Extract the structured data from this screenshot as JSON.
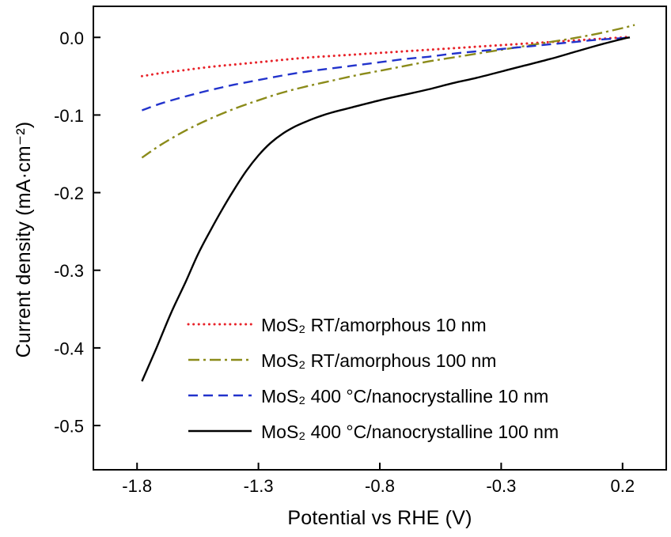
{
  "figure": {
    "background": "#ffffff"
  },
  "chart_data": {
    "type": "line",
    "title": "",
    "xlabel": "Potential vs  RHE (V)",
    "ylabel": "Current density (mA·cm⁻²)",
    "xlim": [
      -1.98,
      0.38
    ],
    "ylim": [
      -0.557,
      0.04
    ],
    "xticks": [
      -1.8,
      -1.3,
      -0.8,
      -0.3,
      0.2
    ],
    "yticks": [
      0.0,
      -0.1,
      -0.2,
      -0.3,
      -0.4,
      -0.5
    ],
    "grid": false,
    "legend_position": "inside-bottom-center",
    "axis_color": "#000000",
    "series": [
      {
        "name": "mos2-rt-amorphous-10nm",
        "label": "MoS₂ RT/amorphous 10 nm",
        "color": "#e8232a",
        "style": "dotted",
        "points": [
          [
            -1.78,
            -0.05
          ],
          [
            -1.7,
            -0.046
          ],
          [
            -1.6,
            -0.042
          ],
          [
            -1.5,
            -0.038
          ],
          [
            -1.4,
            -0.035
          ],
          [
            -1.3,
            -0.032
          ],
          [
            -1.2,
            -0.029
          ],
          [
            -1.1,
            -0.026
          ],
          [
            -1.0,
            -0.024
          ],
          [
            -0.9,
            -0.022
          ],
          [
            -0.8,
            -0.02
          ],
          [
            -0.7,
            -0.018
          ],
          [
            -0.6,
            -0.016
          ],
          [
            -0.5,
            -0.014
          ],
          [
            -0.4,
            -0.012
          ],
          [
            -0.3,
            -0.01
          ],
          [
            -0.2,
            -0.008
          ],
          [
            -0.1,
            -0.006
          ],
          [
            0.0,
            -0.004
          ],
          [
            0.1,
            -0.002
          ],
          [
            0.2,
            0.0
          ],
          [
            0.23,
            0.001
          ]
        ]
      },
      {
        "name": "mos2-rt-amorphous-100nm",
        "label": "MoS₂ RT/amorphous 100 nm",
        "color": "#8b8b1a",
        "style": "dashdot",
        "points": [
          [
            -1.78,
            -0.155
          ],
          [
            -1.7,
            -0.138
          ],
          [
            -1.6,
            -0.12
          ],
          [
            -1.5,
            -0.105
          ],
          [
            -1.4,
            -0.092
          ],
          [
            -1.3,
            -0.081
          ],
          [
            -1.2,
            -0.071
          ],
          [
            -1.1,
            -0.063
          ],
          [
            -1.0,
            -0.056
          ],
          [
            -0.9,
            -0.049
          ],
          [
            -0.8,
            -0.043
          ],
          [
            -0.7,
            -0.037
          ],
          [
            -0.6,
            -0.031
          ],
          [
            -0.5,
            -0.026
          ],
          [
            -0.4,
            -0.021
          ],
          [
            -0.3,
            -0.016
          ],
          [
            -0.2,
            -0.011
          ],
          [
            -0.1,
            -0.006
          ],
          [
            0.0,
            -0.001
          ],
          [
            0.1,
            0.005
          ],
          [
            0.2,
            0.012
          ],
          [
            0.25,
            0.016
          ]
        ]
      },
      {
        "name": "mos2-400c-nanocrystalline-10nm",
        "label": "MoS₂ 400 °C/nanocrystalline 10 nm",
        "color": "#2233cc",
        "style": "dashed",
        "points": [
          [
            -1.78,
            -0.094
          ],
          [
            -1.7,
            -0.085
          ],
          [
            -1.6,
            -0.076
          ],
          [
            -1.5,
            -0.068
          ],
          [
            -1.4,
            -0.061
          ],
          [
            -1.3,
            -0.055
          ],
          [
            -1.2,
            -0.049
          ],
          [
            -1.1,
            -0.044
          ],
          [
            -1.0,
            -0.04
          ],
          [
            -0.9,
            -0.036
          ],
          [
            -0.8,
            -0.032
          ],
          [
            -0.7,
            -0.028
          ],
          [
            -0.6,
            -0.025
          ],
          [
            -0.5,
            -0.021
          ],
          [
            -0.4,
            -0.018
          ],
          [
            -0.3,
            -0.015
          ],
          [
            -0.2,
            -0.012
          ],
          [
            -0.1,
            -0.009
          ],
          [
            0.0,
            -0.006
          ],
          [
            0.1,
            -0.003
          ],
          [
            0.2,
            -0.001
          ],
          [
            0.23,
            0.0
          ]
        ]
      },
      {
        "name": "mos2-400c-nanocrystalline-100nm",
        "label": "MoS₂ 400 °C/nanocrystalline 100 nm",
        "color": "#000000",
        "style": "solid",
        "points": [
          [
            -1.78,
            -0.443
          ],
          [
            -1.72,
            -0.4
          ],
          [
            -1.66,
            -0.355
          ],
          [
            -1.6,
            -0.315
          ],
          [
            -1.55,
            -0.28
          ],
          [
            -1.5,
            -0.25
          ],
          [
            -1.45,
            -0.222
          ],
          [
            -1.4,
            -0.196
          ],
          [
            -1.35,
            -0.172
          ],
          [
            -1.3,
            -0.152
          ],
          [
            -1.25,
            -0.136
          ],
          [
            -1.2,
            -0.124
          ],
          [
            -1.15,
            -0.115
          ],
          [
            -1.1,
            -0.108
          ],
          [
            -1.05,
            -0.102
          ],
          [
            -1.0,
            -0.097
          ],
          [
            -0.9,
            -0.089
          ],
          [
            -0.8,
            -0.081
          ],
          [
            -0.7,
            -0.074
          ],
          [
            -0.6,
            -0.067
          ],
          [
            -0.5,
            -0.059
          ],
          [
            -0.4,
            -0.052
          ],
          [
            -0.3,
            -0.044
          ],
          [
            -0.2,
            -0.036
          ],
          [
            -0.1,
            -0.028
          ],
          [
            0.0,
            -0.019
          ],
          [
            0.1,
            -0.01
          ],
          [
            0.2,
            -0.002
          ],
          [
            0.23,
            0.0
          ]
        ]
      }
    ]
  }
}
